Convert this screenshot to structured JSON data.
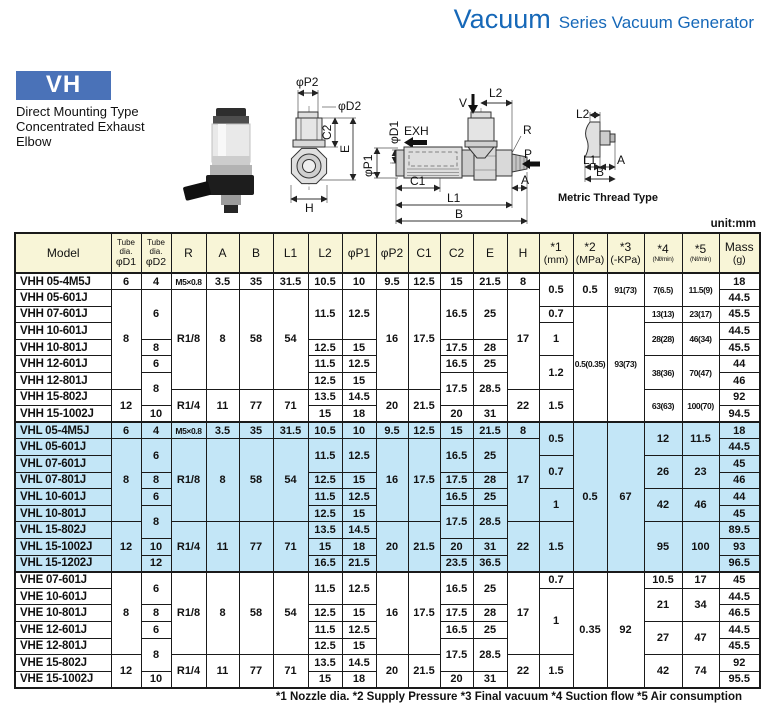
{
  "page": {
    "title_main": "Vacuum",
    "title_sub": "Series Vacuum Generator",
    "badge": "VH",
    "desc1": "Direct Mounting Type",
    "desc2": "Concentrated Exhaust",
    "desc3": "Elbow",
    "unit": "unit:mm",
    "footnote": "*1 Nozzle dia.  *2 Supply Pressure  *3 Final vacuum  *4 Suction flow  *5 Air consumption"
  },
  "colors": {
    "accent": "#1668b8",
    "badge": "#4a72b8",
    "header_bg": "#f8f5d7",
    "highlight_bg": "#c3e6f7",
    "line": "#1a1a1a"
  },
  "diagrams": {
    "front": {
      "p2": "φP2",
      "d2": "φD2",
      "c2": "C2",
      "e": "E",
      "h": "H"
    },
    "side": {
      "v": "V",
      "l2": "L2",
      "d1": "φD1",
      "exh": "EXH",
      "p1": "φP1",
      "r": "R",
      "p": "P",
      "a": "A",
      "c1": "C1",
      "l1": "L1",
      "b": "B"
    },
    "metric": {
      "l2": "L2",
      "l1": "L1",
      "a": "A",
      "b": "B",
      "caption": "Metric Thread Type"
    }
  },
  "table": {
    "header": [
      {
        "a": "Model"
      },
      {
        "a": "Tube dia.",
        "b": "φD1",
        "sa": 1
      },
      {
        "a": "Tube dia.",
        "b": "φD2",
        "sa": 1
      },
      {
        "a": "R"
      },
      {
        "a": "A"
      },
      {
        "a": "B"
      },
      {
        "a": "L1"
      },
      {
        "a": "L2"
      },
      {
        "a": "φP1"
      },
      {
        "a": "φP2"
      },
      {
        "a": "C1"
      },
      {
        "a": "C2"
      },
      {
        "a": "E"
      },
      {
        "a": "H"
      },
      {
        "a": "*1",
        "b": "(mm)"
      },
      {
        "a": "*2",
        "b": "(MPa)"
      },
      {
        "a": "*3",
        "b": "(-KPa)"
      },
      {
        "a": "*4",
        "b": "(Nℓ/min)",
        "sb": 1
      },
      {
        "a": "*5",
        "b": "(Nℓ/min)",
        "sb": 1
      },
      {
        "a": "Mass",
        "b": "(g)"
      }
    ],
    "sections": [
      {
        "name": "VHH",
        "highlight": false,
        "rows": [
          [
            "VHH 05-4M5J",
            "6",
            "4",
            [
              "M5×0.8",
              1,
              1
            ],
            "3.5",
            "35",
            "31.5",
            "10.5",
            "10",
            "9.5",
            "12.5",
            "15",
            "21.5",
            "8",
            [
              "0.5",
              2
            ],
            [
              "0.5",
              2
            ],
            [
              "91(73)",
              2,
              1
            ],
            [
              "7(6.5)",
              2,
              1
            ],
            [
              "11.5(9)",
              2,
              1
            ],
            "18"
          ],
          [
            "VHH 05-601J",
            [
              "8",
              6
            ],
            [
              "6",
              3
            ],
            [
              "R1/8",
              6
            ],
            [
              "8",
              6
            ],
            [
              "58",
              6
            ],
            [
              "54",
              6
            ],
            [
              "11.5",
              3
            ],
            [
              "12.5",
              3
            ],
            [
              "16",
              6
            ],
            [
              "17.5",
              6
            ],
            [
              "16.5",
              3
            ],
            [
              "25",
              3
            ],
            [
              "17",
              6
            ],
            "44.5"
          ],
          [
            "VHH 07-601J",
            "0.7",
            [
              "0.5(0.35)",
              7,
              1
            ],
            [
              "93(73)",
              7,
              1
            ],
            [
              "13(13)",
              1,
              1
            ],
            [
              "23(17)",
              1,
              1
            ],
            "45.5"
          ],
          [
            "VHH 10-601J",
            [
              "1",
              2
            ],
            [
              "28(28)",
              2,
              1
            ],
            [
              "46(34)",
              2,
              1
            ],
            "44.5"
          ],
          [
            "VHH 10-801J",
            "8",
            "12.5",
            "15",
            "17.5",
            "28",
            "45.5"
          ],
          [
            "VHH 12-601J",
            "6",
            "11.5",
            "12.5",
            "16.5",
            "25",
            [
              "1.2",
              2
            ],
            [
              "38(36)",
              2,
              1
            ],
            [
              "70(47)",
              2,
              1
            ],
            "44"
          ],
          [
            "VHH 12-801J",
            [
              "8",
              2
            ],
            "12.5",
            "15",
            [
              "17.5",
              2
            ],
            [
              "28.5",
              2
            ],
            "46"
          ],
          [
            "VHH 15-802J",
            [
              "12",
              2
            ],
            [
              "R1/4",
              2
            ],
            [
              "11",
              2
            ],
            [
              "77",
              2
            ],
            [
              "71",
              2
            ],
            "13.5",
            "14.5",
            [
              "20",
              2
            ],
            [
              "21.5",
              2
            ],
            [
              "22",
              2
            ],
            [
              "1.5",
              2
            ],
            [
              "63(63)",
              2,
              1
            ],
            [
              "100(70)",
              2,
              1
            ],
            "92"
          ],
          [
            "VHH 15-1002J",
            "10",
            "15",
            "18",
            "20",
            "31",
            "94.5"
          ]
        ]
      },
      {
        "name": "VHL",
        "highlight": true,
        "rows": [
          [
            "VHL 05-4M5J",
            "6",
            "4",
            [
              "M5×0.8",
              1,
              1
            ],
            "3.5",
            "35",
            "31.5",
            "10.5",
            "10",
            "9.5",
            "12.5",
            "15",
            "21.5",
            "8",
            [
              "0.5",
              2
            ],
            [
              "0.5",
              9
            ],
            [
              "67",
              9
            ],
            [
              "12",
              2
            ],
            [
              "11.5",
              2
            ],
            "18"
          ],
          [
            "VHL 05-601J",
            [
              "8",
              5
            ],
            [
              "6",
              2
            ],
            [
              "R1/8",
              5
            ],
            [
              "8",
              5
            ],
            [
              "58",
              5
            ],
            [
              "54",
              5
            ],
            [
              "11.5",
              2
            ],
            [
              "12.5",
              2
            ],
            [
              "16",
              5
            ],
            [
              "17.5",
              5
            ],
            [
              "16.5",
              2
            ],
            [
              "25",
              2
            ],
            [
              "17",
              5
            ],
            "44.5"
          ],
          [
            "VHL 07-601J",
            [
              "0.7",
              2
            ],
            [
              "26",
              2
            ],
            [
              "23",
              2
            ],
            "45"
          ],
          [
            "VHL 07-801J",
            "8",
            "12.5",
            "15",
            "17.5",
            "28",
            "46"
          ],
          [
            "VHL 10-601J",
            "6",
            "11.5",
            "12.5",
            "16.5",
            "25",
            [
              "1",
              2
            ],
            [
              "42",
              2
            ],
            [
              "46",
              2
            ],
            "44"
          ],
          [
            "VHL 10-801J",
            [
              "8",
              2
            ],
            "12.5",
            "15",
            [
              "17.5",
              2
            ],
            [
              "28.5",
              2
            ],
            "45"
          ],
          [
            "VHL 15-802J",
            [
              "12",
              3
            ],
            [
              "R1/4",
              3
            ],
            [
              "11",
              3
            ],
            [
              "77",
              3
            ],
            [
              "71",
              3
            ],
            "13.5",
            "14.5",
            [
              "20",
              3
            ],
            [
              "21.5",
              3
            ],
            [
              "22",
              3
            ],
            [
              "1.5",
              3
            ],
            [
              "95",
              3
            ],
            [
              "100",
              3
            ],
            "89.5"
          ],
          [
            "VHL 15-1002J",
            "10",
            "15",
            "18",
            "20",
            "31",
            "93"
          ],
          [
            "VHL 15-1202J",
            "12",
            "16.5",
            "21.5",
            "23.5",
            "36.5",
            "96.5"
          ]
        ]
      },
      {
        "name": "VHE",
        "highlight": false,
        "rows": [
          [
            "VHE 07-601J",
            [
              "8",
              5
            ],
            [
              "6",
              2
            ],
            [
              "R1/8",
              5
            ],
            [
              "8",
              5
            ],
            [
              "58",
              5
            ],
            [
              "54",
              5
            ],
            [
              "11.5",
              2
            ],
            [
              "12.5",
              2
            ],
            [
              "16",
              5
            ],
            [
              "17.5",
              5
            ],
            [
              "16.5",
              2
            ],
            [
              "25",
              2
            ],
            [
              "17",
              5
            ],
            "0.7",
            [
              "0.35",
              7
            ],
            [
              "92",
              7
            ],
            "10.5",
            "17",
            "45"
          ],
          [
            "VHE 10-601J",
            [
              "1",
              4
            ],
            [
              "21",
              2
            ],
            [
              "34",
              2
            ],
            "44.5"
          ],
          [
            "VHE 10-801J",
            "8",
            "12.5",
            "15",
            "17.5",
            "28",
            "46.5"
          ],
          [
            "VHE 12-601J",
            "6",
            "11.5",
            "12.5",
            "16.5",
            "25",
            [
              "27",
              2
            ],
            [
              "47",
              2
            ],
            "44.5"
          ],
          [
            "VHE 12-801J",
            [
              "8",
              2
            ],
            "12.5",
            "15",
            [
              "17.5",
              2
            ],
            [
              "28.5",
              2
            ],
            "45.5"
          ],
          [
            "VHE 15-802J",
            [
              "12",
              2
            ],
            [
              "R1/4",
              2
            ],
            [
              "11",
              2
            ],
            [
              "77",
              2
            ],
            [
              "71",
              2
            ],
            "13.5",
            "14.5",
            [
              "20",
              2
            ],
            [
              "21.5",
              2
            ],
            [
              "22",
              2
            ],
            [
              "1.5",
              2
            ],
            [
              "42",
              2
            ],
            [
              "74",
              2
            ],
            "92"
          ],
          [
            "VHE 15-1002J",
            "10",
            "15",
            "18",
            "20",
            "31",
            "95.5"
          ]
        ]
      }
    ]
  }
}
